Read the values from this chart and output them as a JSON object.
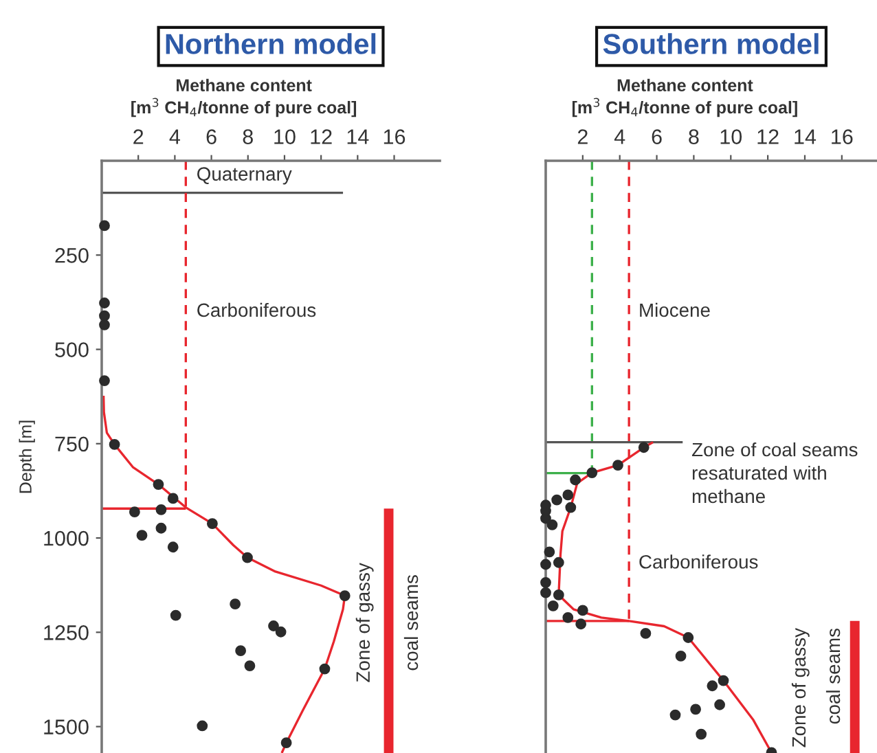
{
  "chart_data": [
    {
      "type": "scatter",
      "title": "Northern model",
      "xlabel": "Methane content\n[m$^{3}$ CH$_{4}$/tonne of pure coal]",
      "ylabel": "Depth [m]",
      "xlim": [
        0,
        18.5
      ],
      "ylim": [
        1570,
        0
      ],
      "xticks": [
        2,
        4,
        6,
        8,
        10,
        12,
        14,
        16
      ],
      "yticks": [
        250,
        500,
        750,
        1000,
        1250,
        1500
      ],
      "grid": false,
      "legend": false,
      "series": [
        {
          "type": "line",
          "color": "#555555",
          "line_style": "solid",
          "marker": "none",
          "x": [
            0,
            13.2
          ],
          "values": [
            85,
            85
          ]
        },
        {
          "type": "line",
          "color": "#e8262e",
          "line_style": "dashed",
          "marker": "none",
          "x": [
            4.6,
            4.6
          ],
          "values": [
            0,
            922
          ]
        },
        {
          "type": "line",
          "color": "#e8262e",
          "line_style": "solid",
          "marker": "none",
          "x": [
            0,
            4.6
          ],
          "values": [
            922,
            922
          ]
        },
        {
          "type": "line",
          "color": "#e8262e",
          "line_style": "solid",
          "marker": "none",
          "x": [
            0.1,
            0.12,
            0.28,
            0.7,
            1.7,
            3.1,
            4.6,
            6.05,
            7.2,
            7.97,
            9.5,
            12.0,
            13.3,
            13.2,
            12.7,
            12.2,
            11.0,
            10.1,
            9.85
          ],
          "values": [
            623,
            666,
            721,
            752,
            812,
            858,
            919,
            962,
            1019,
            1052,
            1089,
            1126,
            1153,
            1189,
            1274,
            1347,
            1457,
            1543,
            1570
          ]
        },
        {
          "type": "line",
          "color": "#e8262e",
          "line_style": "solid",
          "marker": "none",
          "x": [
            15.7,
            15.7
          ],
          "values": [
            922,
            1570
          ]
        },
        {
          "color": "#2b2b2b",
          "marker": "circle",
          "x": [
            0.15,
            0.15,
            0.15,
            0.15,
            0.15,
            0.7,
            3.1,
            3.9,
            1.8,
            3.25,
            6.05,
            2.2,
            3.25,
            3.9,
            7.97,
            13.3,
            7.3,
            4.05,
            9.4,
            9.8,
            7.6,
            8.1,
            12.2,
            5.5,
            10.1
          ],
          "values": [
            172,
            377,
            411,
            435,
            583,
            752,
            858,
            895,
            931,
            925,
            962,
            993,
            974,
            1024,
            1052,
            1153,
            1175,
            1205,
            1233,
            1249,
            1299,
            1339,
            1347,
            1498,
            1543
          ]
        }
      ],
      "annotations": [
        "Quaternary",
        "Carboniferous",
        "Zone of gassy\ncoal seams"
      ]
    },
    {
      "type": "scatter",
      "title": "Southern model",
      "xlabel": "Methane content\n[m$^{3}$ CH$_{4}$/tonne of pure coal]",
      "xlim": [
        0,
        17.9
      ],
      "ylim": [
        1570,
        0
      ],
      "xticks": [
        2,
        4,
        6,
        8,
        10,
        12,
        14,
        16
      ],
      "tick_labels": "x",
      "grid": false,
      "legend": false,
      "series": [
        {
          "type": "line",
          "color": "#3cb04a",
          "line_style": "dashed",
          "marker": "none",
          "x": [
            2.5,
            2.5
          ],
          "values": [
            0,
            828
          ]
        },
        {
          "type": "line",
          "color": "#e8262e",
          "line_style": "dashed",
          "marker": "none",
          "x": [
            4.5,
            4.5
          ],
          "values": [
            0,
            1220
          ]
        },
        {
          "type": "line",
          "color": "#555555",
          "line_style": "solid",
          "marker": "none",
          "x": [
            0,
            7.4
          ],
          "values": [
            746,
            746
          ]
        },
        {
          "type": "line",
          "color": "#3cb04a",
          "line_style": "solid",
          "marker": "none",
          "x": [
            0,
            2.5
          ],
          "values": [
            828,
            828
          ]
        },
        {
          "type": "line",
          "color": "#e8262e",
          "line_style": "solid",
          "marker": "none",
          "x": [
            0,
            4.5
          ],
          "values": [
            1220,
            1220
          ]
        },
        {
          "type": "line",
          "color": "#e8262e",
          "line_style": "solid",
          "marker": "none",
          "x": [
            5.8,
            5.3,
            3.9,
            2.5,
            1.7,
            1.35,
            0.9,
            0.8,
            0.7,
            1.5,
            3.0,
            4.5,
            6.4,
            7.7,
            9.6,
            11.2,
            12.2
          ],
          "values": [
            746,
            760,
            807,
            827,
            855,
            919,
            982,
            1043,
            1151,
            1189,
            1211,
            1220,
            1234,
            1264,
            1378,
            1481,
            1569
          ]
        },
        {
          "type": "line",
          "color": "#e8262e",
          "line_style": "solid",
          "marker": "none",
          "x": [
            16.7,
            16.7
          ],
          "values": [
            1220,
            1570
          ]
        },
        {
          "color": "#2b2b2b",
          "marker": "circle",
          "x": [
            5.3,
            3.9,
            2.5,
            1.6,
            1.2,
            0.6,
            1.35,
            0,
            0,
            0,
            0.35,
            0.2,
            0.7,
            0,
            0,
            0,
            0.7,
            0.4,
            2.0,
            1.2,
            1.9,
            5.4,
            7.7,
            7.3,
            9.6,
            9.0,
            9.4,
            8.1,
            7.0,
            8.4,
            12.2
          ],
          "values": [
            760,
            807,
            827,
            846,
            886,
            899,
            919,
            913,
            928,
            948,
            965,
            1037,
            1065,
            1070,
            1118,
            1145,
            1151,
            1180,
            1192,
            1211,
            1228,
            1253,
            1264,
            1313,
            1378,
            1392,
            1442,
            1454,
            1469,
            1520,
            1569
          ]
        }
      ],
      "annotations": [
        "Miocene",
        "Zone of coal seams\nresaturated with\nmethane",
        "Carboniferous",
        "Zone of gassy\ncoal seams"
      ]
    }
  ]
}
